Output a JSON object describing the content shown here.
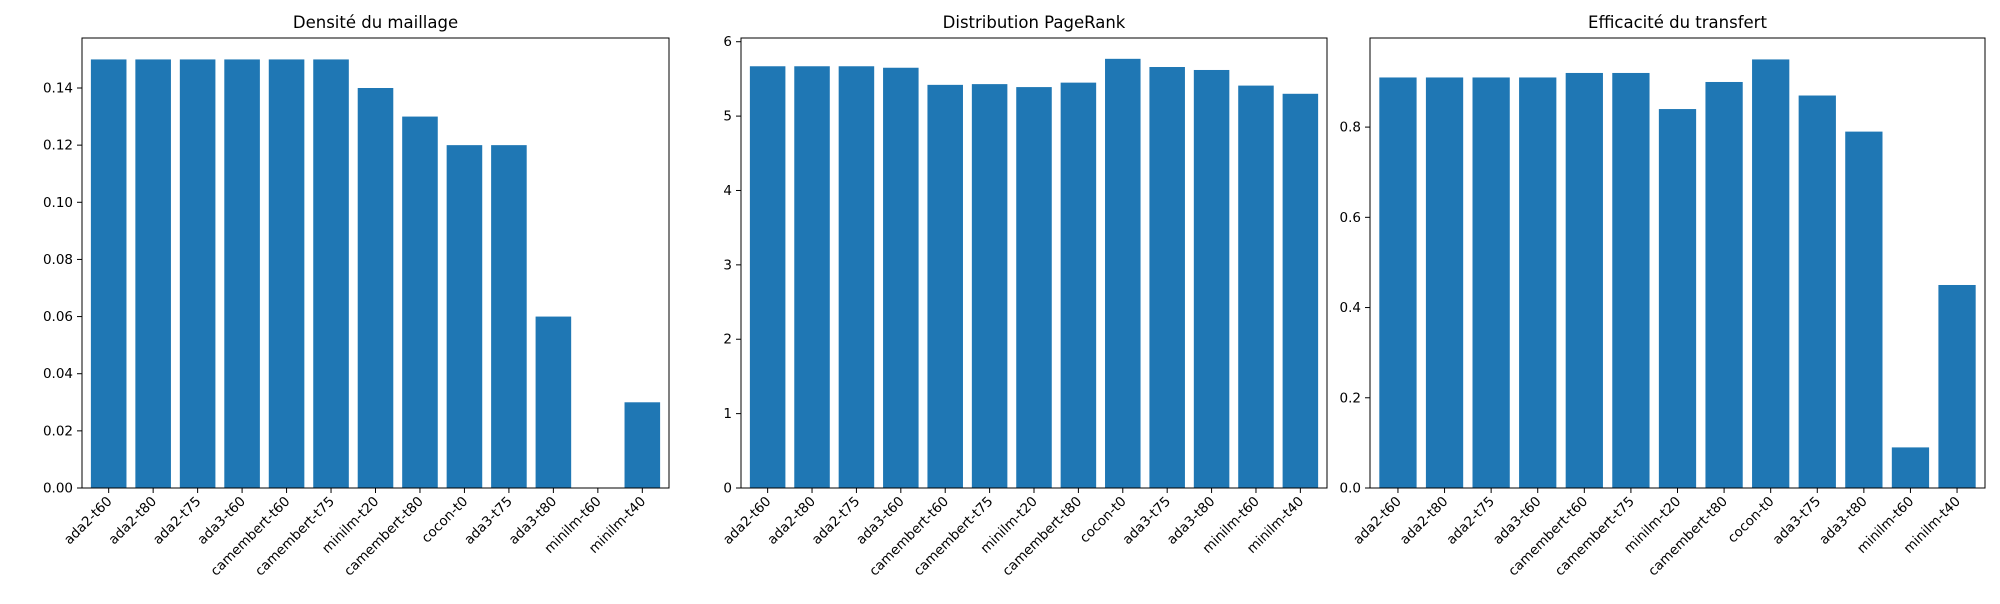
{
  "colors": {
    "bar": "#1f77b4",
    "axis": "#000000",
    "background": "#ffffff"
  },
  "chart_data": [
    {
      "type": "bar",
      "title": "Densité du maillage",
      "xlabel": "",
      "ylabel": "",
      "ylim": [
        0,
        0.1575
      ],
      "yticks": [
        0,
        0.02,
        0.04,
        0.06,
        0.08,
        0.1,
        0.12,
        0.14
      ],
      "ytick_labels": [
        "0.00",
        "0.02",
        "0.04",
        "0.06",
        "0.08",
        "0.10",
        "0.12",
        "0.14"
      ],
      "grid": false,
      "categories": [
        "ada2-t60",
        "ada2-t80",
        "ada2-t75",
        "ada3-t60",
        "camembert-t60",
        "camembert-t75",
        "minilm-t20",
        "camembert-t80",
        "cocon-t0",
        "ada3-t75",
        "ada3-t80",
        "minilm-t60",
        "minilm-t40"
      ],
      "values": [
        0.15,
        0.15,
        0.15,
        0.15,
        0.15,
        0.15,
        0.14,
        0.13,
        0.12,
        0.12,
        0.06,
        0.0,
        0.03
      ]
    },
    {
      "type": "bar",
      "title": "Distribution PageRank",
      "xlabel": "",
      "ylabel": "",
      "ylim": [
        0,
        6.05
      ],
      "yticks": [
        0,
        1,
        2,
        3,
        4,
        5,
        6
      ],
      "ytick_labels": [
        "0",
        "1",
        "2",
        "3",
        "4",
        "5",
        "6"
      ],
      "grid": false,
      "categories": [
        "ada2-t60",
        "ada2-t80",
        "ada2-t75",
        "ada3-t60",
        "camembert-t60",
        "camembert-t75",
        "minilm-t20",
        "camembert-t80",
        "cocon-t0",
        "ada3-t75",
        "ada3-t80",
        "minilm-t60",
        "minilm-t40"
      ],
      "values": [
        5.67,
        5.67,
        5.67,
        5.65,
        5.42,
        5.43,
        5.39,
        5.45,
        5.77,
        5.66,
        5.62,
        5.41,
        5.3
      ]
    },
    {
      "type": "bar",
      "title": "Efficacité du transfert",
      "xlabel": "",
      "ylabel": "",
      "ylim": [
        0,
        0.9975
      ],
      "yticks": [
        0,
        0.2,
        0.4,
        0.6,
        0.8
      ],
      "ytick_labels": [
        "0.0",
        "0.2",
        "0.4",
        "0.6",
        "0.8"
      ],
      "grid": false,
      "categories": [
        "ada2-t60",
        "ada2-t80",
        "ada2-t75",
        "ada3-t60",
        "camembert-t60",
        "camembert-t75",
        "minilm-t20",
        "camembert-t80",
        "cocon-t0",
        "ada3-t75",
        "ada3-t80",
        "minilm-t60",
        "minilm-t40"
      ],
      "values": [
        0.91,
        0.91,
        0.91,
        0.91,
        0.92,
        0.92,
        0.84,
        0.9,
        0.95,
        0.87,
        0.79,
        0.09,
        0.45
      ]
    }
  ]
}
